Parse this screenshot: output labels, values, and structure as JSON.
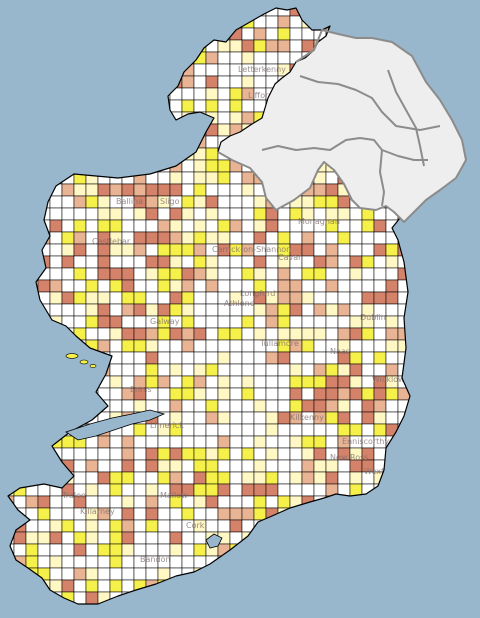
{
  "map": {
    "kind": "grid-square distribution map",
    "region": "Ireland",
    "colors": {
      "sea": "#98b6cc",
      "land_ni": "#eeeeee",
      "border": "#8c8c8c",
      "grid_line": "#000000",
      "category_none": "#ffffff",
      "category_low": "#fff7c4",
      "category_mid": "#f6f04a",
      "category_high": "#e9b494",
      "category_top": "#d4826a"
    },
    "labels": [
      {
        "id": "town-letterkenny",
        "text": "Letterkenny"
      },
      {
        "id": "town-lifford",
        "text": "Lifford"
      },
      {
        "id": "town-ballina",
        "text": "Ballina"
      },
      {
        "id": "town-castlebar",
        "text": "Castlebar"
      },
      {
        "id": "town-sligo",
        "text": "Sligo"
      },
      {
        "id": "town-carrick",
        "text": "Carrick-on-Shannon"
      },
      {
        "id": "town-monaghan",
        "text": "Monaghan"
      },
      {
        "id": "town-cavan",
        "text": "Cavan"
      },
      {
        "id": "town-longford",
        "text": "Longford"
      },
      {
        "id": "town-athlone",
        "text": "Athlone"
      },
      {
        "id": "town-galway",
        "text": "Galway"
      },
      {
        "id": "town-tullamore",
        "text": "Tullamore"
      },
      {
        "id": "town-naas",
        "text": "Naas"
      },
      {
        "id": "town-dublin",
        "text": "Dublin"
      },
      {
        "id": "town-wicklow",
        "text": "Wicklow"
      },
      {
        "id": "town-ennis",
        "text": "Ennis"
      },
      {
        "id": "town-limerick",
        "text": "Limerick"
      },
      {
        "id": "town-kilkenny",
        "text": "Kilkenny"
      },
      {
        "id": "town-new-ross",
        "text": "New Ross"
      },
      {
        "id": "town-enniscorthy",
        "text": "Enniscorthy"
      },
      {
        "id": "town-wexford",
        "text": "Wexford"
      },
      {
        "id": "town-tralee",
        "text": "Tralee"
      },
      {
        "id": "town-killarney",
        "text": "Killarney"
      },
      {
        "id": "town-mallow",
        "text": "Mallow"
      },
      {
        "id": "town-cork",
        "text": "Cork"
      },
      {
        "id": "town-bandon",
        "text": "Bandon"
      }
    ]
  }
}
